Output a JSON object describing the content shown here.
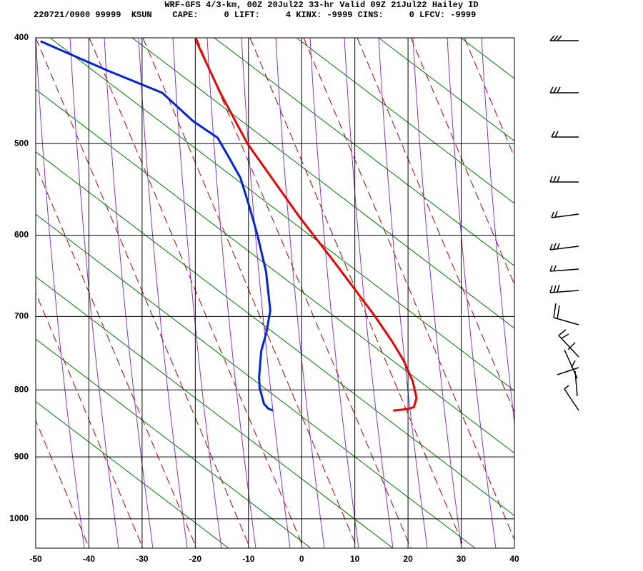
{
  "chart_data": {
    "type": "skewt",
    "title": "WRF-GFS 4/3-km, 00Z 20Jul22 33-hr Valid 09Z 21Jul22 Hailey ID",
    "subtitle": "220721/0900 99999  KSUN    CAPE:     0 LIFT:     4 KINX: -9999 CINS:     0 LFCV: -9999",
    "yscale": "pressure",
    "xlim": [
      -50,
      40
    ],
    "xticks": [
      -50,
      -40,
      -30,
      -20,
      -10,
      0,
      10,
      20,
      30,
      40
    ],
    "ylim": [
      1050,
      400
    ],
    "yticks": [
      400,
      500,
      600,
      700,
      800,
      900,
      1000
    ],
    "grid": true,
    "series": [
      {
        "color": "#ee0000",
        "x": [
          -20,
          -15.3,
          -10.2,
          -0.3,
          6.4,
          13.8,
          17.1,
          19.1,
          20.9,
          21.6,
          21.1,
          19.8,
          17.2
        ],
        "y": [
          401,
          450,
          500,
          580,
          634,
          700,
          734,
          758,
          788,
          812,
          825,
          828,
          830
        ]
      },
      {
        "color": "#0022dd",
        "x": [
          -49.1,
          -36.6,
          -26.2,
          -20.5,
          -15.8,
          -13.8,
          -11.5,
          -9.8,
          -8.3,
          -6.7,
          -5.9,
          -6.6,
          -7.6,
          -8.0,
          -7.9,
          -7.1,
          -6.3,
          -5.4
        ],
        "y": [
          403,
          429,
          450,
          477,
          494,
          513,
          536,
          568,
          600,
          643,
          692,
          720,
          746,
          782,
          797,
          820,
          827,
          830
        ]
      }
    ]
  }
}
